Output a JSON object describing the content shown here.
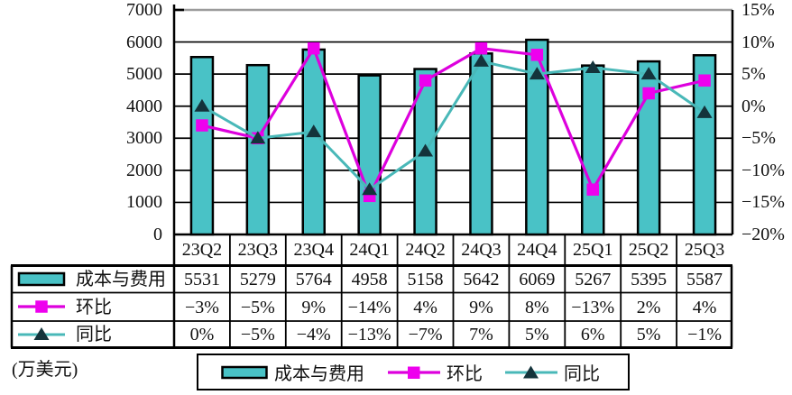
{
  "unit_label": "(万美元)",
  "colors": {
    "bar_fill": "#49C2C6",
    "bar_border": "#000000",
    "qoq_line": "#DD00DD",
    "qoq_marker": "#EE00EE",
    "yoy_line": "#49B8B8",
    "yoy_marker": "#14333B",
    "grid_line": "#000000",
    "top_line": "#9B9B9B"
  },
  "chart_data": {
    "type": "combo-bar-line",
    "categories": [
      "23Q2",
      "23Q3",
      "23Q4",
      "24Q1",
      "24Q2",
      "24Q3",
      "24Q4",
      "25Q1",
      "25Q2",
      "25Q3"
    ],
    "series": [
      {
        "name": "成本与费用",
        "type": "bar",
        "axis": "left",
        "values": [
          5531,
          5279,
          5764,
          4958,
          5158,
          5642,
          6069,
          5267,
          5395,
          5587
        ],
        "labels": [
          "5531",
          "5279",
          "5764",
          "4958",
          "5158",
          "5642",
          "6069",
          "5267",
          "5395",
          "5587"
        ]
      },
      {
        "name": "环比",
        "type": "line",
        "marker": "square",
        "axis": "right",
        "values_percent": [
          -3,
          -5,
          9,
          -14,
          4,
          9,
          8,
          -13,
          2,
          4
        ],
        "labels": [
          "−3%",
          "−5%",
          "9%",
          "−14%",
          "4%",
          "9%",
          "8%",
          "−13%",
          "2%",
          "4%"
        ]
      },
      {
        "name": "同比",
        "type": "line",
        "marker": "triangle",
        "axis": "right",
        "values_percent": [
          0,
          -5,
          -4,
          -13,
          -7,
          7,
          5,
          6,
          5,
          -1
        ],
        "labels": [
          "0%",
          "−5%",
          "−4%",
          "−13%",
          "−7%",
          "7%",
          "5%",
          "6%",
          "5%",
          "−1%"
        ]
      }
    ],
    "left_axis": {
      "min": 0,
      "max": 7000,
      "step": 1000,
      "tick_labels": [
        "0",
        "1000",
        "2000",
        "3000",
        "4000",
        "5000",
        "6000",
        "7000"
      ]
    },
    "right_axis": {
      "min": -20,
      "max": 15,
      "step": 5,
      "tick_labels": [
        "−20%",
        "−15%",
        "−10%",
        "−5%",
        "0%",
        "5%",
        "10%",
        "15%"
      ]
    },
    "grid": "horizontal",
    "legend_position": "bottom"
  }
}
